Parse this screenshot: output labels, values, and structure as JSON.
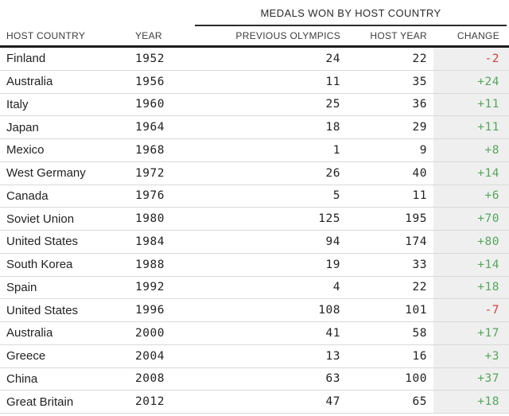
{
  "chart_data": {
    "type": "table",
    "title": "MEDALS WON BY HOST COUNTRY",
    "columns": [
      "HOST COUNTRY",
      "YEAR",
      "PREVIOUS OLYMPICS",
      "HOST YEAR",
      "CHANGE"
    ],
    "rows": [
      {
        "country": "Finland",
        "year": "1952",
        "previous_olympics": "24",
        "host_year": "22",
        "change": "-2"
      },
      {
        "country": "Australia",
        "year": "1956",
        "previous_olympics": "11",
        "host_year": "35",
        "change": "+24"
      },
      {
        "country": "Italy",
        "year": "1960",
        "previous_olympics": "25",
        "host_year": "36",
        "change": "+11"
      },
      {
        "country": "Japan",
        "year": "1964",
        "previous_olympics": "18",
        "host_year": "29",
        "change": "+11"
      },
      {
        "country": "Mexico",
        "year": "1968",
        "previous_olympics": "1",
        "host_year": "9",
        "change": "+8"
      },
      {
        "country": "West Germany",
        "year": "1972",
        "previous_olympics": "26",
        "host_year": "40",
        "change": "+14"
      },
      {
        "country": "Canada",
        "year": "1976",
        "previous_olympics": "5",
        "host_year": "11",
        "change": "+6"
      },
      {
        "country": "Soviet Union",
        "year": "1980",
        "previous_olympics": "125",
        "host_year": "195",
        "change": "+70"
      },
      {
        "country": "United States",
        "year": "1984",
        "previous_olympics": "94",
        "host_year": "174",
        "change": "+80"
      },
      {
        "country": "South Korea",
        "year": "1988",
        "previous_olympics": "19",
        "host_year": "33",
        "change": "+14"
      },
      {
        "country": "Spain",
        "year": "1992",
        "previous_olympics": "4",
        "host_year": "22",
        "change": "+18"
      },
      {
        "country": "United States",
        "year": "1996",
        "previous_olympics": "108",
        "host_year": "101",
        "change": "-7"
      },
      {
        "country": "Australia",
        "year": "2000",
        "previous_olympics": "41",
        "host_year": "58",
        "change": "+17"
      },
      {
        "country": "Greece",
        "year": "2004",
        "previous_olympics": "13",
        "host_year": "16",
        "change": "+3"
      },
      {
        "country": "China",
        "year": "2008",
        "previous_olympics": "63",
        "host_year": "100",
        "change": "+37"
      },
      {
        "country": "Great Britain",
        "year": "2012",
        "previous_olympics": "47",
        "host_year": "65",
        "change": "+18"
      }
    ]
  },
  "colors": {
    "change_positive": "#56a55c",
    "change_negative": "#cd4540",
    "change_col_bg": "#efefef",
    "rule_dark": "#1c1c1c",
    "rule_medium": "#2c2c2c",
    "rule_light": "#d9d9d9",
    "text_main": "#222222",
    "text_header": "#3d3d3d"
  }
}
